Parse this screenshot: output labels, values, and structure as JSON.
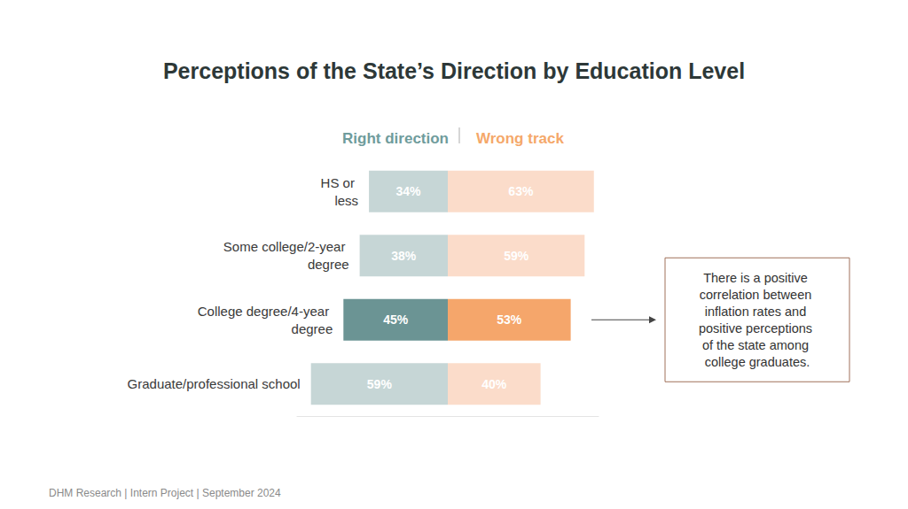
{
  "chart_data": {
    "type": "bar",
    "title": "Perceptions of the State’s Direction by Education Level",
    "orientation": "horizontal",
    "categories": [
      "HS or less",
      "Some college/2-year degree",
      "College degree/4-year degree",
      "Graduate/professional school"
    ],
    "series": [
      {
        "name": "Right direction",
        "color": "#6f9c9c",
        "colors": [
          "#c6d6d6",
          "#c6d6d6",
          "#6b9494",
          "#c6d6d6"
        ],
        "values": [
          34,
          38,
          45,
          59
        ],
        "value_labels": [
          "34%",
          "38%",
          "45%",
          "59%"
        ]
      },
      {
        "name": "Wrong track",
        "color": "#f5a86a",
        "colors": [
          "#fbdcca",
          "#fbdcca",
          "#f5a66b",
          "#fbdcca"
        ],
        "values": [
          63,
          59,
          53,
          40
        ],
        "value_labels": [
          "63%",
          "59%",
          "53%",
          "40%"
        ]
      }
    ],
    "xlim": [
      0,
      65
    ],
    "tick_labels": false,
    "grid": false,
    "legend": "top",
    "data_labels": true,
    "annotation": "There is a positive correlation between inflation rates and positive perceptions of the state among college graduates.",
    "footer": "DHM Research | Intern Project | September 2024"
  }
}
